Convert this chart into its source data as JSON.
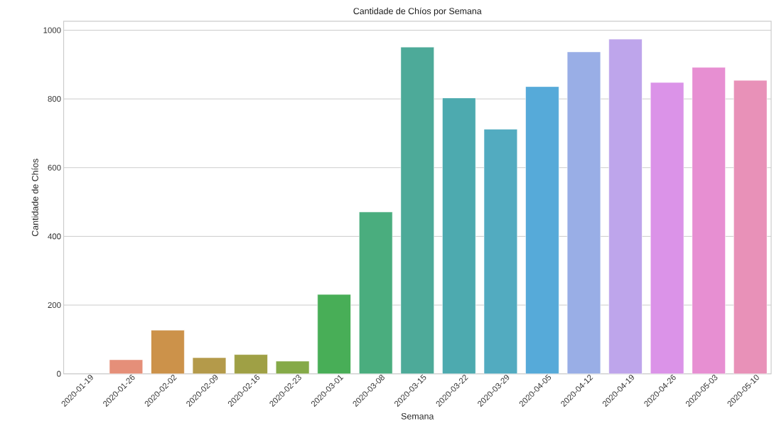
{
  "chart_data": {
    "type": "bar",
    "title": "Cantidade de Chíos por Semana",
    "xlabel": "Semana",
    "ylabel": "Cantidade de Chíos",
    "categories": [
      "2020-01-19",
      "2020-01-26",
      "2020-02-02",
      "2020-02-09",
      "2020-02-16",
      "2020-02-23",
      "2020-03-01",
      "2020-03-08",
      "2020-03-15",
      "2020-03-22",
      "2020-03-29",
      "2020-04-05",
      "2020-04-12",
      "2020-04-19",
      "2020-04-26",
      "2020-05-03",
      "2020-05-10"
    ],
    "values": [
      null,
      41,
      127,
      47,
      56,
      37,
      231,
      471,
      951,
      803,
      712,
      836,
      937,
      974,
      848,
      892,
      854
    ],
    "colors": [
      "#f0898a",
      "#e58f79",
      "#cc924a",
      "#b49a4a",
      "#9fa045",
      "#85aa48",
      "#48ae57",
      "#4aad7e",
      "#4daa99",
      "#4daaaf",
      "#52abc0",
      "#56aad9",
      "#99aee6",
      "#bea5eb",
      "#db93e8",
      "#e78fd2",
      "#e891b8"
    ],
    "ylim": [
      0,
      1026
    ],
    "yticks": [
      0,
      200,
      400,
      600,
      800,
      1000
    ],
    "grid": "y"
  }
}
